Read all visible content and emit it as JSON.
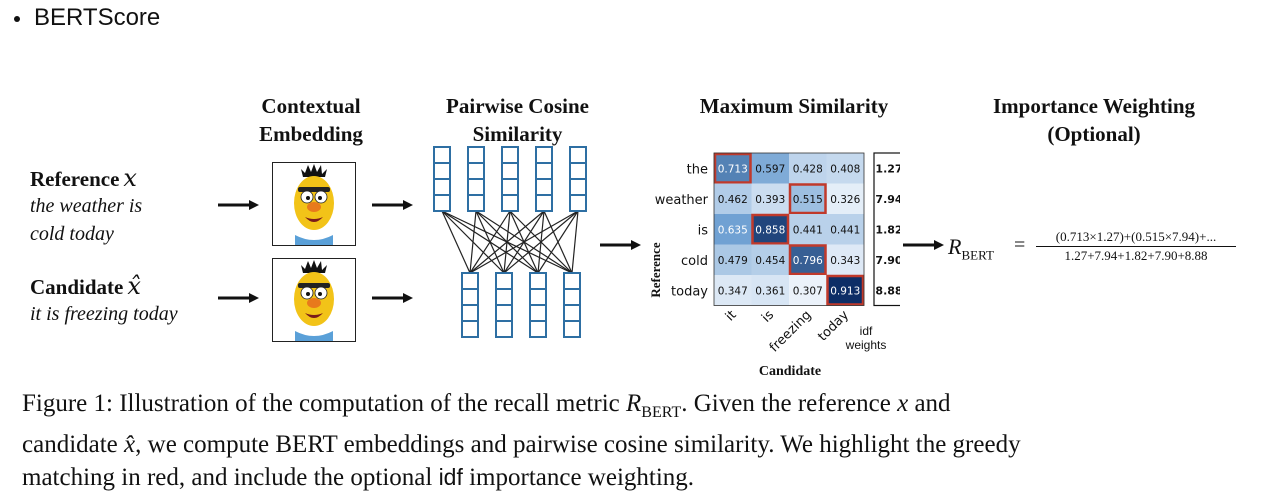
{
  "slide": {
    "bullet": "BERTScore"
  },
  "headers": {
    "contextual_1": "Contextual",
    "contextual_2": "Embedding",
    "pairwise_1": "Pairwise Cosine",
    "pairwise_2": "Similarity",
    "maxsim": "Maximum Similarity",
    "importance_1": "Importance Weighting",
    "importance_2": "(Optional)"
  },
  "inputs": {
    "reference_label": "Reference",
    "reference_symbol": "x",
    "reference_line1": "the weather is",
    "reference_line2": "cold today",
    "candidate_label": "Candidate",
    "candidate_symbol": "x̂",
    "candidate_line1": "it is freezing today"
  },
  "heatmap": {
    "row_tokens": [
      "the",
      "weather",
      "is",
      "cold",
      "today"
    ],
    "col_tokens": [
      "it",
      "is",
      "freezing",
      "today"
    ],
    "values": [
      [
        0.713,
        0.597,
        0.428,
        0.408
      ],
      [
        0.462,
        0.393,
        0.515,
        0.326
      ],
      [
        0.635,
        0.858,
        0.441,
        0.441
      ],
      [
        0.479,
        0.454,
        0.796,
        0.343
      ],
      [
        0.347,
        0.361,
        0.307,
        0.913
      ]
    ],
    "value_labels": [
      [
        "0.713",
        "0.597",
        "0.428",
        "0.408"
      ],
      [
        "0.462",
        "0.393",
        "0.515",
        "0.326"
      ],
      [
        "0.635",
        "0.858",
        "0.441",
        "0.441"
      ],
      [
        "0.479",
        "0.454",
        "0.796",
        "0.343"
      ],
      [
        "0.347",
        "0.361",
        "0.307",
        "0.913"
      ]
    ],
    "highlight_cols": [
      0,
      2,
      1,
      2,
      3
    ],
    "idf_weights": [
      "1.27",
      "7.94",
      "1.82",
      "7.90",
      "8.88"
    ],
    "ylabel": "Reference",
    "xlabel": "Candidate",
    "idf_label_1": "idf",
    "idf_label_2": "weights",
    "highlight_color": "#c0392b"
  },
  "formula": {
    "lhs": "R",
    "lhs_sub": "BERT",
    "eq": "=",
    "numerator": "(0.713×1.27)+(0.515×7.94)+...",
    "denominator": "1.27+7.94+1.82+7.90+8.88"
  },
  "caption": {
    "line1_a": "Figure 1:  Illustration of the computation of the recall metric ",
    "line1_sym": "R",
    "line1_sub": "BERT",
    "line1_b": ".  Given the reference ",
    "line1_x": "x",
    "line1_c": " and",
    "line2_a": "candidate ",
    "line2_x": "x̂",
    "line2_b": ", we compute BERT embeddings and pairwise cosine similarity. We highlight the greedy",
    "line3_a": "matching in red, and include the optional ",
    "line3_idf": "idf",
    "line3_b": " importance weighting."
  },
  "colors": {
    "embedding_blue": "#2e6fa3",
    "heatmap_low": "#eef4fb",
    "heatmap_high": "#0b2b63"
  }
}
